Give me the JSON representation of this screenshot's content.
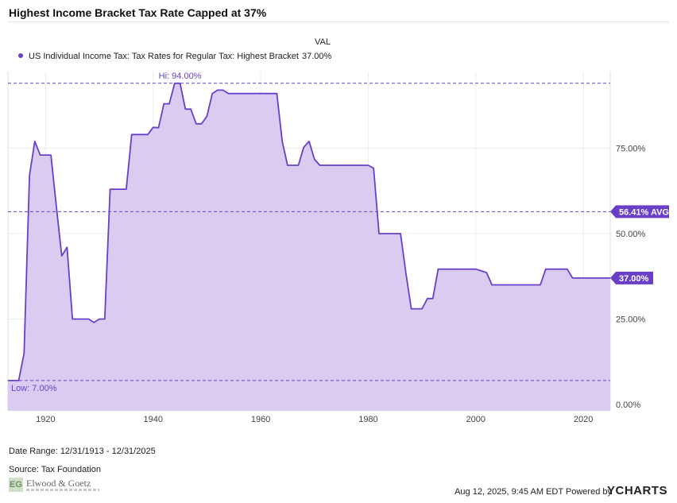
{
  "title": "Highest Income Bracket Tax Rate Capped at 37%",
  "legend": {
    "header": "VAL",
    "series_name": "US Individual Income Tax: Tax Rates for Regular Tax: Highest Bracket",
    "value": "37.00%"
  },
  "colors": {
    "line": "#6a3fc8",
    "fill": "#d9ccf0",
    "grid": "#ececec",
    "ref": "#6a3fc8",
    "label_bg": "#6a3fc8"
  },
  "chart_data": {
    "type": "area",
    "x_axis": {
      "range": [
        1913,
        2025
      ],
      "ticks": [
        1920,
        1940,
        1960,
        1980,
        2000,
        2020
      ]
    },
    "y_axis": {
      "range": [
        0,
        95
      ],
      "ticks": [
        0,
        25,
        50,
        75
      ],
      "tick_labels": [
        "0.00%",
        "25.00%",
        "50.00%",
        "75.00%"
      ],
      "position": "right"
    },
    "grid": true,
    "series": [
      {
        "name": "US Individual Income Tax: Tax Rates for Regular Tax: Highest Bracket",
        "x": [
          1913,
          1914,
          1915,
          1916,
          1917,
          1918,
          1919,
          1920,
          1921,
          1922,
          1923,
          1924,
          1925,
          1926,
          1927,
          1928,
          1929,
          1930,
          1931,
          1932,
          1933,
          1934,
          1935,
          1936,
          1937,
          1938,
          1939,
          1940,
          1941,
          1942,
          1943,
          1944,
          1945,
          1946,
          1947,
          1948,
          1949,
          1950,
          1951,
          1952,
          1953,
          1954,
          1955,
          1956,
          1957,
          1958,
          1959,
          1960,
          1961,
          1962,
          1963,
          1964,
          1965,
          1966,
          1967,
          1968,
          1969,
          1970,
          1971,
          1972,
          1973,
          1974,
          1975,
          1976,
          1977,
          1978,
          1979,
          1980,
          1981,
          1982,
          1983,
          1984,
          1985,
          1986,
          1987,
          1988,
          1989,
          1990,
          1991,
          1992,
          1993,
          1994,
          1995,
          1996,
          1997,
          1998,
          1999,
          2000,
          2001,
          2002,
          2003,
          2004,
          2005,
          2006,
          2007,
          2008,
          2009,
          2010,
          2011,
          2012,
          2013,
          2014,
          2015,
          2016,
          2017,
          2018,
          2019,
          2020,
          2021,
          2022,
          2023,
          2024,
          2025
        ],
        "y": [
          7,
          7,
          7,
          15,
          67,
          77,
          73,
          73,
          73,
          58,
          43.5,
          46,
          25,
          25,
          25,
          25,
          24,
          25,
          25,
          63,
          63,
          63,
          63,
          79,
          79,
          79,
          79,
          81.1,
          81,
          88,
          88,
          94,
          94,
          86.45,
          86.45,
          82.13,
          82.13,
          84.36,
          91,
          92,
          92,
          91,
          91,
          91,
          91,
          91,
          91,
          91,
          91,
          91,
          91,
          77,
          70,
          70,
          70,
          75.25,
          77,
          71.75,
          70,
          70,
          70,
          70,
          70,
          70,
          70,
          70,
          70,
          70,
          69.13,
          50,
          50,
          50,
          50,
          50,
          38.5,
          28,
          28,
          28,
          31,
          31,
          39.6,
          39.6,
          39.6,
          39.6,
          39.6,
          39.6,
          39.6,
          39.6,
          39.1,
          38.6,
          35,
          35,
          35,
          35,
          35,
          35,
          35,
          35,
          35,
          35,
          39.6,
          39.6,
          39.6,
          39.6,
          39.6,
          37,
          37,
          37,
          37,
          37,
          37,
          37,
          37
        ]
      }
    ],
    "reference_lines": [
      {
        "label": "Hi: 94.00%",
        "value": 94
      },
      {
        "label": "56.41% AVG",
        "value": 56.41
      },
      {
        "label": "Low: 7.00%",
        "value": 7
      }
    ],
    "last_value_label": {
      "label": "37.00%",
      "value": 37
    }
  },
  "footer": {
    "date_range": "Date Range: 12/31/1913 - 12/31/2025",
    "source": "Source: Tax Foundation",
    "logo_text": "Elwood & Goetz",
    "logo_initials": "EG",
    "timestamp": "Aug 12, 2025, 9:45 AM EDT Powered by",
    "brand": "YCHARTS"
  }
}
